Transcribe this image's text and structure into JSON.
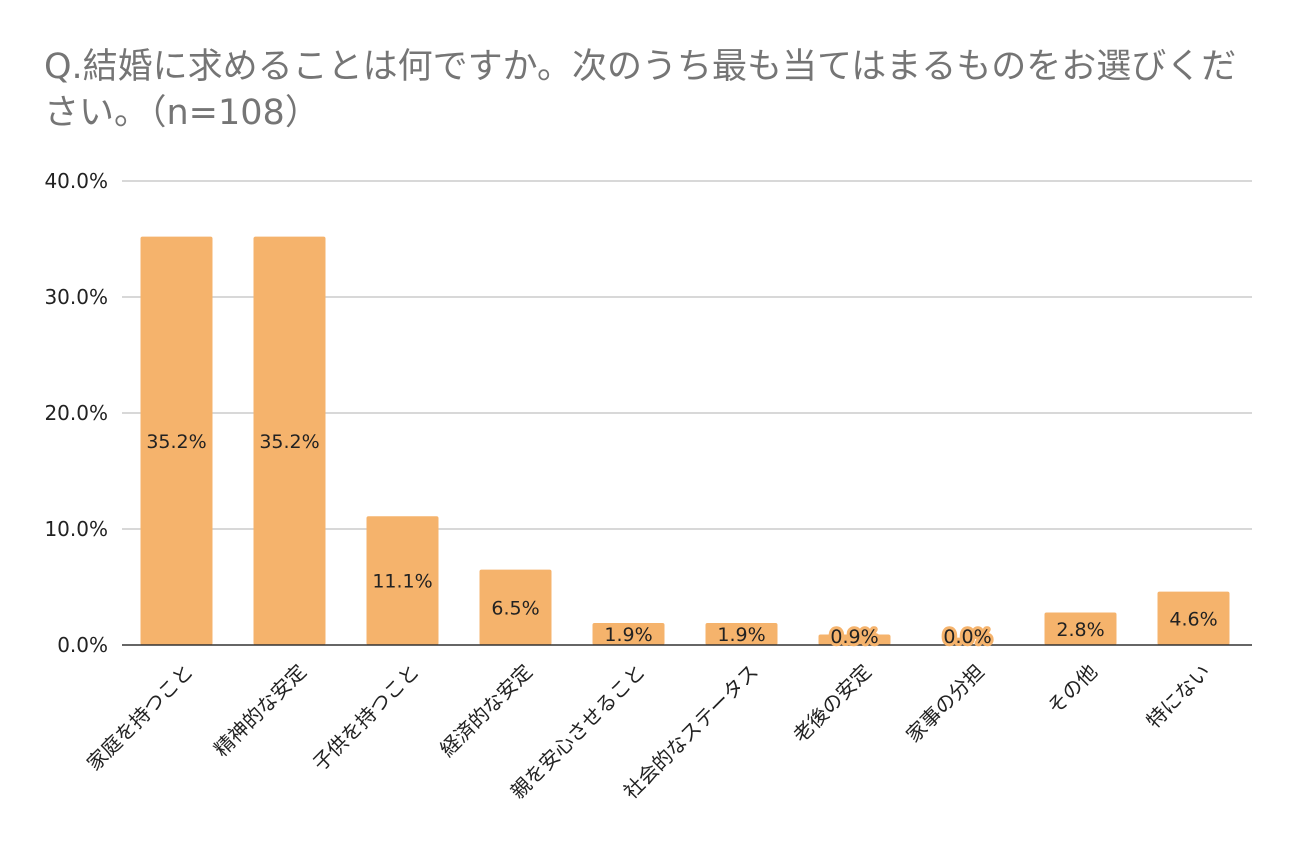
{
  "chart_data": {
    "type": "bar",
    "title": "Q.結婚に求めることは何ですか。次のうち最も当てはまるものをお選びください。（n=108）",
    "categories": [
      "家庭を持つこと",
      "精神的な安定",
      "子供を持つこと",
      "経済的な安定",
      "親を安心させること",
      "社会的なステータス",
      "老後の安定",
      "家事の分担",
      "その他",
      "特にない"
    ],
    "values": [
      35.2,
      35.2,
      11.1,
      6.5,
      1.9,
      1.9,
      0.9,
      0.0,
      2.8,
      4.6
    ],
    "value_labels": [
      "35.2%",
      "35.2%",
      "11.1%",
      "6.5%",
      "1.9%",
      "1.9%",
      "0.9%",
      "0.0%",
      "2.8%",
      "4.6%"
    ],
    "yticks": [
      0,
      10,
      20,
      30,
      40
    ],
    "ytick_labels": [
      "0.0%",
      "10.0%",
      "20.0%",
      "30.0%",
      "40.0%"
    ],
    "ylim": [
      0,
      40
    ],
    "grid": true,
    "legend": "none",
    "bar_color": "#F5B36C"
  }
}
